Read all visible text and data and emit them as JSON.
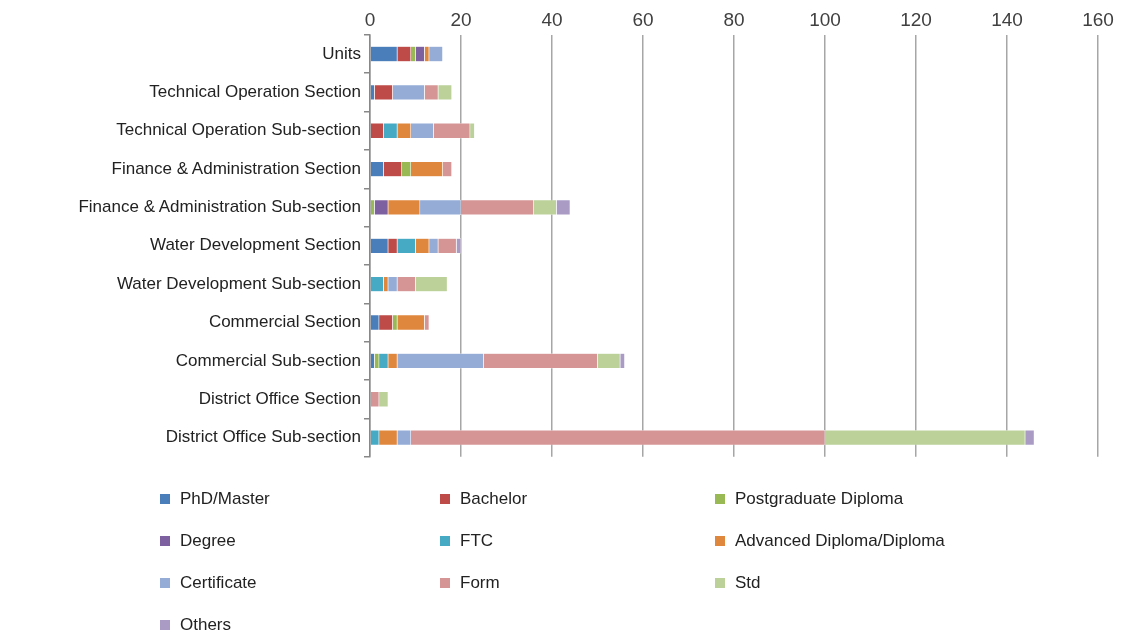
{
  "chart_data": {
    "type": "bar",
    "orientation": "horizontal",
    "stacked": true,
    "grid": "x",
    "legend": "bottom",
    "categories": [
      "Units",
      "Technical Operation Section",
      "Technical Operation Sub-section",
      "Finance & Administration Section",
      "Finance & Administration Sub-section",
      "Water Development Section",
      "Water Development Sub-section",
      "Commercial Section",
      "Commercial Sub-section",
      "District Office Section",
      "District Office Sub-section"
    ],
    "xlim": [
      0,
      160
    ],
    "xticks": [
      0,
      20,
      40,
      60,
      80,
      100,
      120,
      140,
      160
    ],
    "series": [
      {
        "name": "PhD/Master",
        "color": "#4a7ebb",
        "values": [
          6,
          1,
          0,
          3,
          0,
          4,
          0,
          2,
          1,
          0,
          0
        ]
      },
      {
        "name": "Bachelor",
        "color": "#be4b48",
        "values": [
          3,
          4,
          3,
          4,
          0,
          2,
          0,
          3,
          0,
          0,
          0
        ]
      },
      {
        "name": "Postgraduate Diploma",
        "color": "#98b954",
        "values": [
          1,
          0,
          0,
          2,
          1,
          0,
          0,
          1,
          1,
          0,
          0
        ]
      },
      {
        "name": "Degree",
        "color": "#7d60a0",
        "values": [
          2,
          0,
          0,
          0,
          3,
          0,
          0,
          0,
          0,
          0,
          0
        ]
      },
      {
        "name": "FTC",
        "color": "#46aac5",
        "values": [
          0,
          0,
          3,
          0,
          0,
          4,
          3,
          0,
          2,
          0,
          2
        ]
      },
      {
        "name": "Advanced Diploma/Diploma",
        "color": "#e0873e",
        "values": [
          1,
          0,
          3,
          7,
          7,
          3,
          1,
          6,
          2,
          0,
          4
        ]
      },
      {
        "name": "Certificate",
        "color": "#94acd6",
        "values": [
          3,
          7,
          5,
          0,
          9,
          2,
          2,
          0,
          19,
          0,
          3
        ]
      },
      {
        "name": "Form",
        "color": "#d69595",
        "values": [
          0,
          3,
          8,
          2,
          16,
          4,
          4,
          1,
          25,
          2,
          91
        ]
      },
      {
        "name": "Std",
        "color": "#bbd199",
        "values": [
          0,
          3,
          1,
          0,
          5,
          0,
          7,
          0,
          5,
          2,
          44
        ]
      },
      {
        "name": "Others",
        "color": "#a99bc4",
        "values": [
          0,
          0,
          0,
          0,
          3,
          1,
          0,
          0,
          1,
          0,
          2
        ]
      }
    ]
  }
}
